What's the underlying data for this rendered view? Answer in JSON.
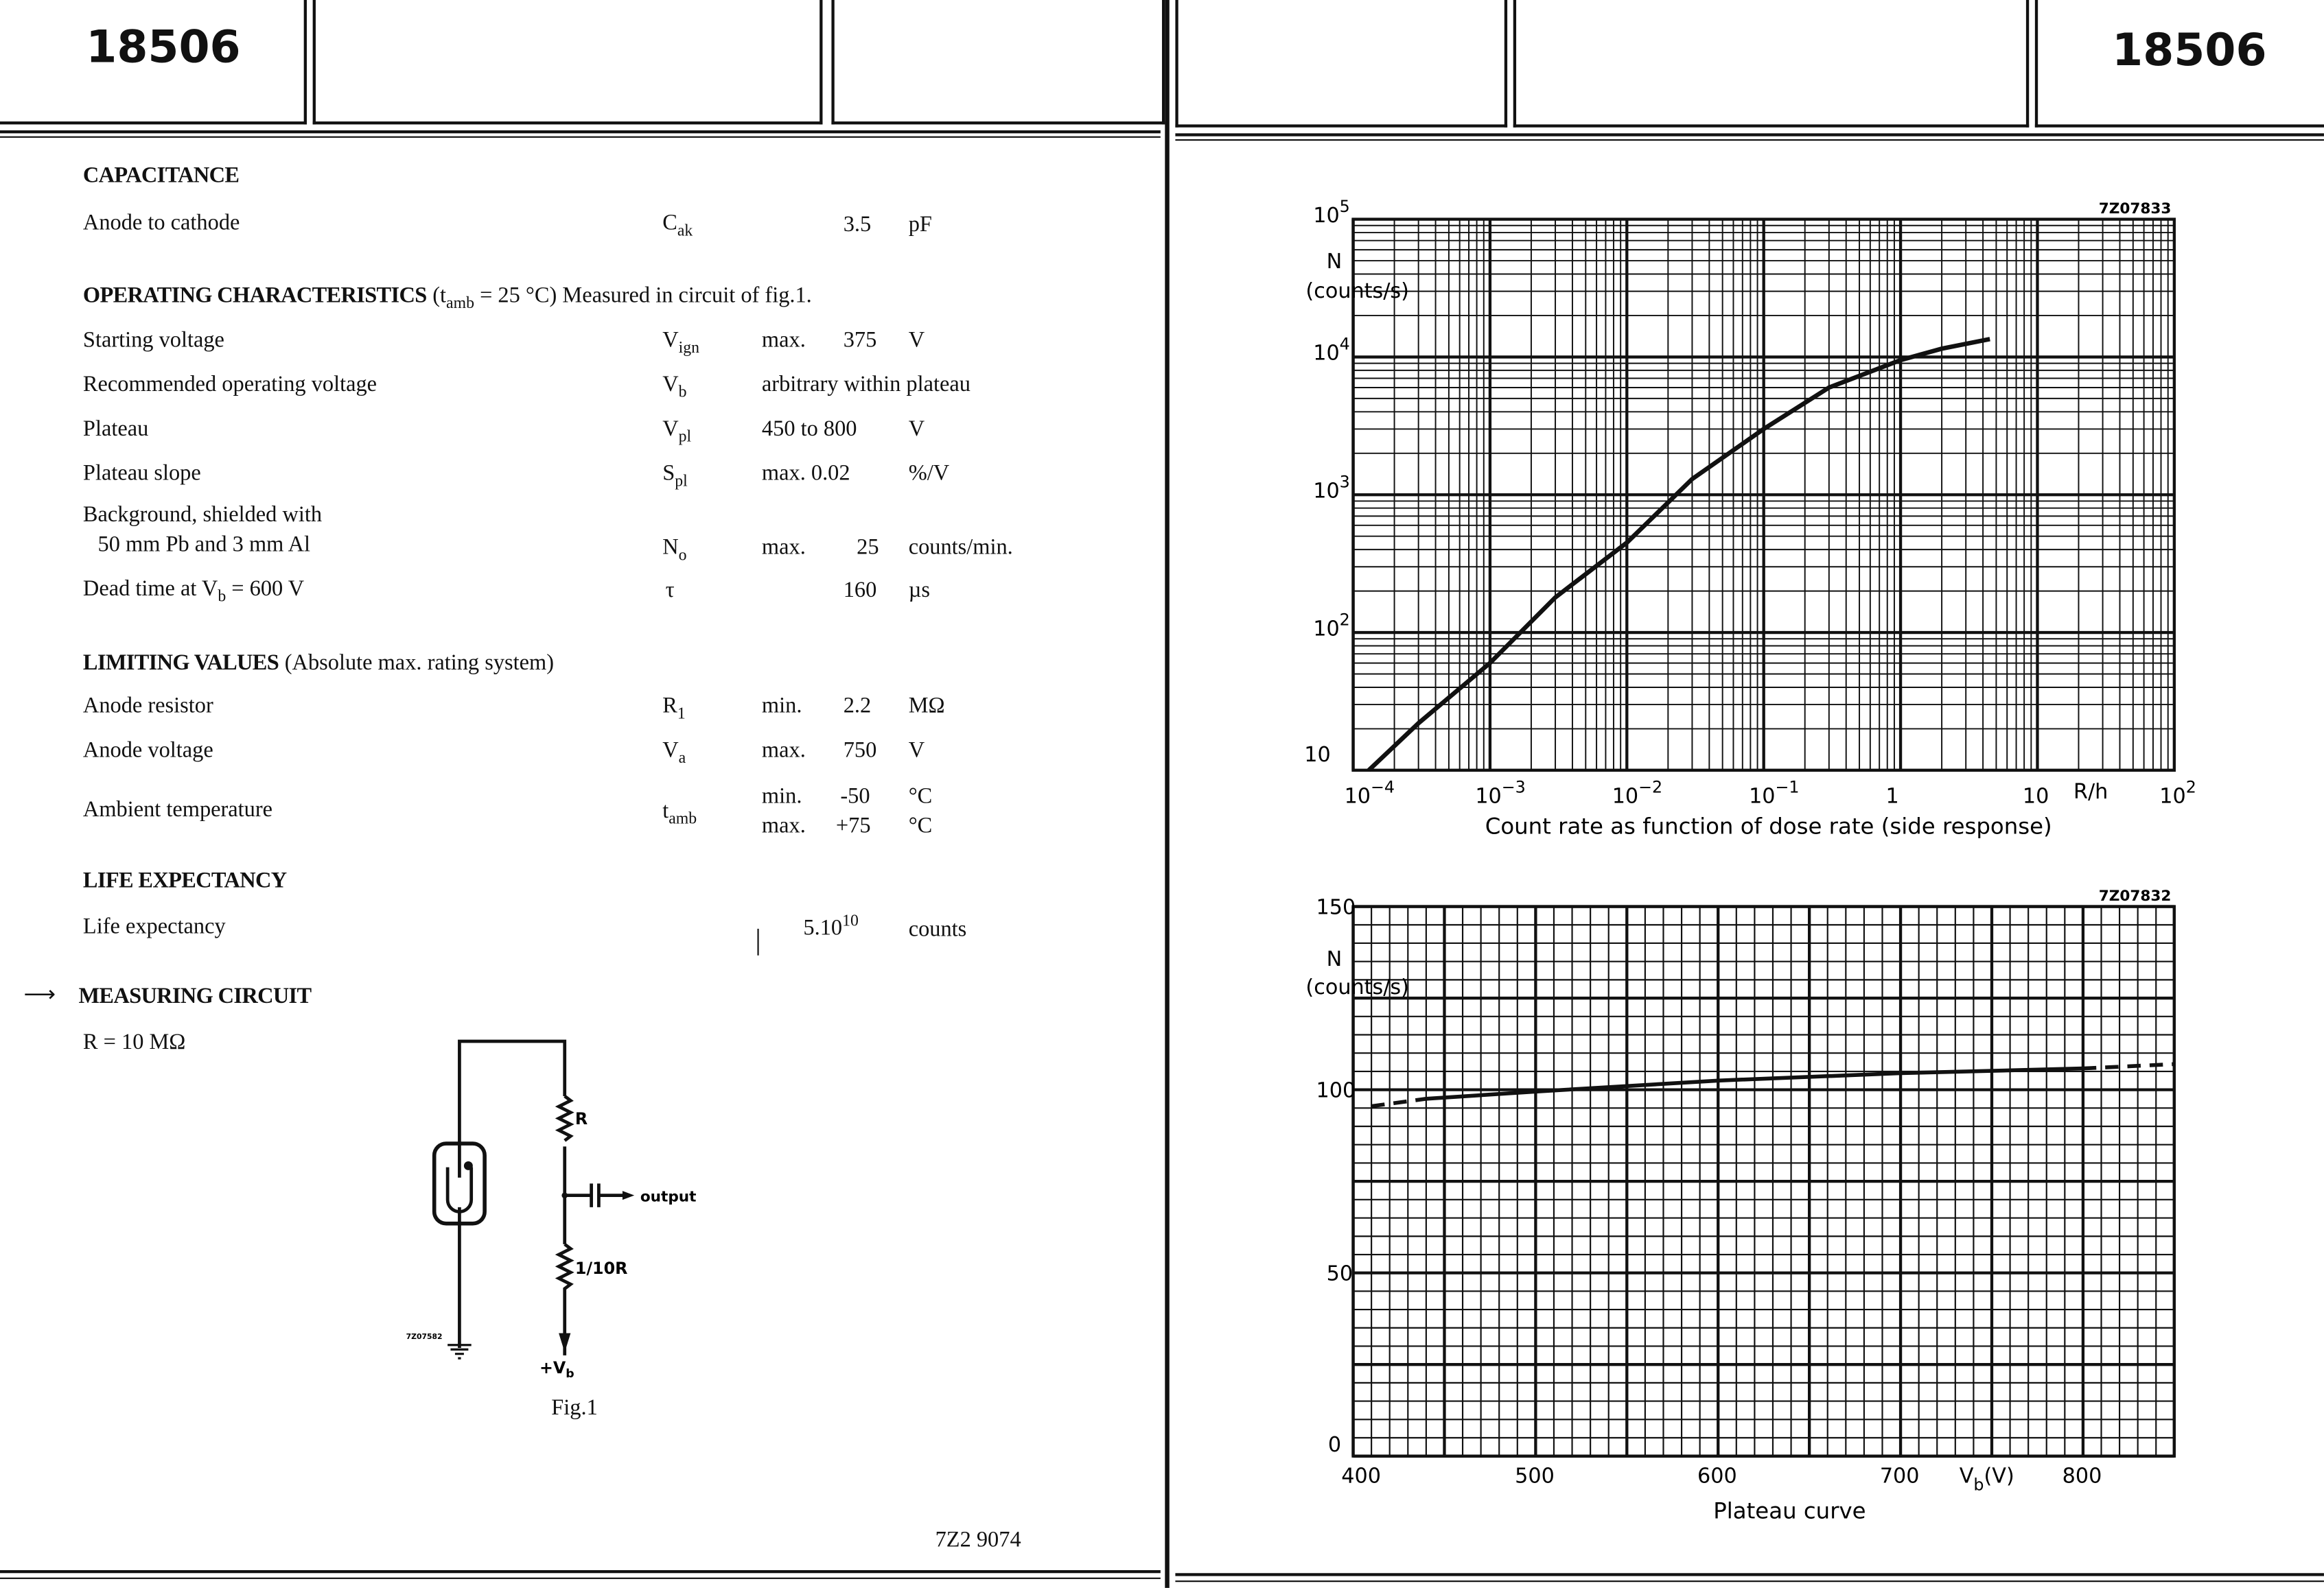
{
  "header": {
    "left_code": "18506",
    "right_code": "18506"
  },
  "capacitance": {
    "heading": "CAPACITANCE",
    "rows": [
      {
        "label": "Anode to cathode",
        "sym": "C",
        "sub": "ak",
        "val": "3.5",
        "unit": "pF"
      }
    ]
  },
  "operating": {
    "heading": "OPERATING CHARACTERISTICS",
    "cond_pre": "(t",
    "cond_sub": "amb",
    "cond_post": " = 25 °C)",
    "note": "Measured in circuit of fig.1.",
    "rows": [
      {
        "label": "Starting voltage",
        "sym": "V",
        "sub": "ign",
        "qual": "max.",
        "val": "375",
        "unit": "V"
      },
      {
        "label": "Recommended operating voltage",
        "sym": "V",
        "sub": "b",
        "qual": "arbitrary within plateau",
        "val": "",
        "unit": ""
      },
      {
        "label": "Plateau",
        "sym": "V",
        "sub": "pl",
        "qual": "450 to 800",
        "val": "",
        "unit": "V"
      },
      {
        "label": "Plateau slope",
        "sym": "S",
        "sub": "pl",
        "qual": "max. 0.02",
        "val": "",
        "unit": "%/V"
      }
    ],
    "background": {
      "label1": "Background,  shielded with",
      "label2": "50 mm Pb and 3 mm Al",
      "sym": "N",
      "sub": "o",
      "qual": "max.",
      "val": "25",
      "unit": "counts/min."
    },
    "dead_time": {
      "label_pre": "Dead time at V",
      "label_sub": "b",
      "label_post": " = 600 V",
      "sym": "τ",
      "val": "160",
      "unit": "µs"
    }
  },
  "limiting": {
    "heading": "LIMITING VALUES",
    "heading_note": "(Absolute max. rating system)",
    "rows": [
      {
        "label": "Anode resistor",
        "sym": "R",
        "sub": "1",
        "qual": "min.",
        "val": "2.2",
        "unit": "MΩ"
      },
      {
        "label": "Anode voltage",
        "sym": "V",
        "sub": "a",
        "qual": "max.",
        "val": "750",
        "unit": "V"
      }
    ],
    "ambient": {
      "label": "Ambient temperature",
      "sym": "t",
      "sub": "amb",
      "qual1": "min.",
      "val1": "-50",
      "unit1": "°C",
      "qual2": "max.",
      "val2": "+75",
      "unit2": "°C"
    }
  },
  "life": {
    "heading": "LIFE EXPECTANCY",
    "label": "Life expectancy",
    "val": "5.10",
    "exp": "10",
    "unit": "counts"
  },
  "circuit": {
    "heading": "MEASURING CIRCUIT",
    "r_value": "R = 10 MΩ",
    "label_r": "R",
    "label_r10": "1/10R",
    "label_output": "output",
    "label_vb": "+V",
    "label_vb_sub": "b",
    "code": "7Z07582",
    "caption": "Fig.1"
  },
  "footer": {
    "code": "7Z2 9074"
  },
  "chart_data": [
    {
      "type": "line",
      "code": "7Z07833",
      "title": "Count rate as function of dose rate (side response)",
      "ylabel": "N",
      "ylabel2": "(counts/s)",
      "xlabel": "R/h",
      "xscale": "log",
      "yscale": "log",
      "xlim": [
        0.0001,
        100
      ],
      "ylim": [
        10,
        100000
      ],
      "grid": true,
      "xticks": [
        {
          "b": "10",
          "e": "−4"
        },
        {
          "b": "10",
          "e": "−3"
        },
        {
          "b": "10",
          "e": "−2"
        },
        {
          "b": "10",
          "e": "−1"
        },
        {
          "b": "1",
          "e": ""
        },
        {
          "b": "10",
          "e": ""
        },
        {
          "b": "10",
          "e": "2"
        }
      ],
      "yticks": [
        {
          "b": "10",
          "e": ""
        },
        {
          "b": "10",
          "e": "2"
        },
        {
          "b": "10",
          "e": "3"
        },
        {
          "b": "10",
          "e": "4"
        },
        {
          "b": "10",
          "e": "5"
        }
      ],
      "series": [
        {
          "x": [
            0.00013,
            0.0003,
            0.001,
            0.003,
            0.01,
            0.03,
            0.1,
            0.3,
            1,
            2,
            4.5
          ],
          "y": [
            10,
            22,
            60,
            180,
            450,
            1300,
            3000,
            6000,
            9500,
            11500,
            13500
          ]
        }
      ]
    },
    {
      "type": "line",
      "code": "7Z07832",
      "title": "Plateau curve",
      "ylabel": "N",
      "ylabel2": "(counts/s)",
      "xlabel": "V",
      "xlabel_sub": "b",
      "xlabel_post": "(V)",
      "xlim": [
        400,
        850
      ],
      "ylim": [
        0,
        150
      ],
      "grid": true,
      "xticks": [
        "400",
        "500",
        "600",
        "700",
        "800"
      ],
      "yticks": [
        "0",
        "50",
        "100",
        "150"
      ],
      "series": [
        {
          "style": "dashed",
          "x": [
            410,
            440
          ],
          "y": [
            95.5,
            97.5
          ]
        },
        {
          "style": "solid",
          "x": [
            440,
            500,
            600,
            700,
            800
          ],
          "y": [
            97.5,
            99.5,
            102.5,
            104.5,
            105.8
          ]
        },
        {
          "style": "dashed",
          "x": [
            800,
            850
          ],
          "y": [
            105.8,
            107
          ]
        }
      ]
    }
  ]
}
